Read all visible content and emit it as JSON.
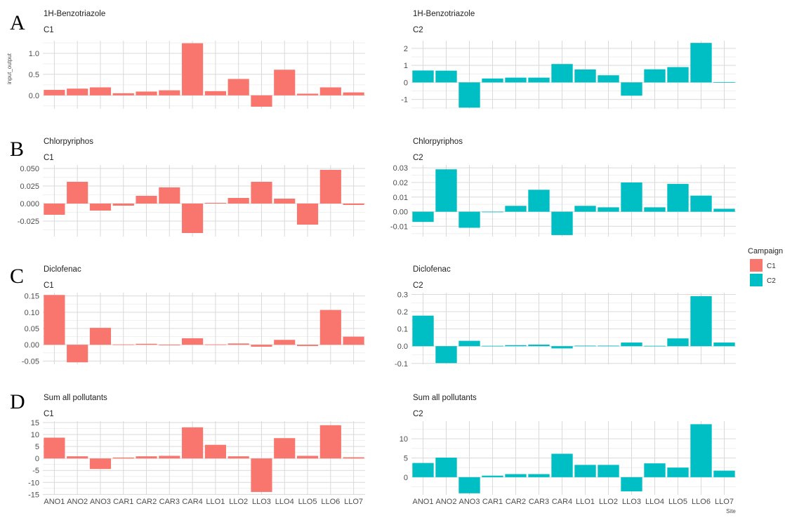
{
  "legend": {
    "title": "Campaign",
    "entries": [
      {
        "label": "C1",
        "color": "#F8766D"
      },
      {
        "label": "C2",
        "color": "#00BFC4"
      }
    ]
  },
  "axes": {
    "ylabel": "input_output",
    "xlabel": "Site"
  },
  "chart_data": [
    {
      "type": "bar",
      "letter": "A",
      "title": "1H-Benzotriazole",
      "subtitle": "C1",
      "color": "#F8766D",
      "categories": [
        "ANO1",
        "ANO2",
        "ANO3",
        "CAR1",
        "CAR2",
        "CAR3",
        "CAR4",
        "LLO1",
        "LLO2",
        "LLO3",
        "LLO4",
        "LLO5",
        "LLO6",
        "LLO7"
      ],
      "values": [
        0.13,
        0.16,
        0.19,
        0.05,
        0.09,
        0.12,
        1.24,
        0.1,
        0.39,
        -0.27,
        0.61,
        0.04,
        0.19,
        0.07
      ],
      "ylim": [
        -0.32,
        1.3
      ],
      "yticks": [
        0.0,
        0.5,
        1.0
      ],
      "ytick_labels": [
        "0.0",
        "0.5",
        "1.0"
      ]
    },
    {
      "type": "bar",
      "letter": "",
      "title": "1H-Benzotriazole",
      "subtitle": "C2",
      "color": "#00BFC4",
      "categories": [
        "ANO1",
        "ANO2",
        "ANO3",
        "CAR1",
        "CAR2",
        "CAR3",
        "CAR4",
        "LLO1",
        "LLO2",
        "LLO3",
        "LLO4",
        "LLO5",
        "LLO6",
        "LLO7"
      ],
      "values": [
        0.7,
        0.69,
        -1.48,
        0.23,
        0.28,
        0.28,
        1.08,
        0.76,
        0.42,
        -0.78,
        0.77,
        0.9,
        2.32,
        0.02
      ],
      "ylim": [
        -1.55,
        2.45
      ],
      "yticks": [
        -1,
        0,
        1,
        2
      ],
      "ytick_labels": [
        "-1",
        "0",
        "1",
        "2"
      ]
    },
    {
      "type": "bar",
      "letter": "B",
      "title": "Chlorpyriphos",
      "subtitle": "C1",
      "color": "#F8766D",
      "categories": [
        "ANO1",
        "ANO2",
        "ANO3",
        "CAR1",
        "CAR2",
        "CAR3",
        "CAR4",
        "LLO1",
        "LLO2",
        "LLO3",
        "LLO4",
        "LLO5",
        "LLO6",
        "LLO7"
      ],
      "values": [
        -0.016,
        0.031,
        -0.01,
        -0.003,
        0.011,
        0.023,
        -0.042,
        0.001,
        0.008,
        0.031,
        0.007,
        -0.03,
        0.048,
        -0.002
      ],
      "ylim": [
        -0.047,
        0.055
      ],
      "yticks": [
        -0.025,
        0.0,
        0.025,
        0.05
      ],
      "ytick_labels": [
        "-0.025",
        "0.000",
        "0.025",
        "0.050"
      ]
    },
    {
      "type": "bar",
      "letter": "",
      "title": "Chlorpyriphos",
      "subtitle": "C2",
      "color": "#00BFC4",
      "categories": [
        "ANO1",
        "ANO2",
        "ANO3",
        "CAR1",
        "CAR2",
        "CAR3",
        "CAR4",
        "LLO1",
        "LLO2",
        "LLO3",
        "LLO4",
        "LLO5",
        "LLO6",
        "LLO7"
      ],
      "values": [
        -0.007,
        0.029,
        -0.011,
        0.0,
        0.004,
        0.015,
        -0.016,
        0.004,
        0.003,
        0.02,
        0.003,
        0.019,
        0.011,
        0.002
      ],
      "ylim": [
        -0.017,
        0.032
      ],
      "yticks": [
        -0.01,
        0.0,
        0.01,
        0.02,
        0.03
      ],
      "ytick_labels": [
        "-0.01",
        "0.00",
        "0.01",
        "0.02",
        "0.03"
      ]
    },
    {
      "type": "bar",
      "letter": "C",
      "title": "Diclofenac",
      "subtitle": "C1",
      "color": "#F8766D",
      "categories": [
        "ANO1",
        "ANO2",
        "ANO3",
        "CAR1",
        "CAR2",
        "CAR3",
        "CAR4",
        "LLO1",
        "LLO2",
        "LLO3",
        "LLO4",
        "LLO5",
        "LLO6",
        "LLO7"
      ],
      "values": [
        0.153,
        -0.054,
        0.052,
        0.001,
        0.003,
        -0.002,
        0.02,
        0.001,
        0.004,
        -0.006,
        0.015,
        -0.004,
        0.107,
        0.025
      ],
      "ylim": [
        -0.06,
        0.16
      ],
      "yticks": [
        -0.05,
        0.0,
        0.05,
        0.1,
        0.15
      ],
      "ytick_labels": [
        "-0.05",
        "0.00",
        "0.05",
        "0.10",
        "0.15"
      ]
    },
    {
      "type": "bar",
      "letter": "",
      "title": "Diclofenac",
      "subtitle": "C2",
      "color": "#00BFC4",
      "categories": [
        "ANO1",
        "ANO2",
        "ANO3",
        "CAR1",
        "CAR2",
        "CAR3",
        "CAR4",
        "LLO1",
        "LLO2",
        "LLO3",
        "LLO4",
        "LLO5",
        "LLO6",
        "LLO7"
      ],
      "values": [
        0.177,
        -0.098,
        0.031,
        0.002,
        0.006,
        0.009,
        -0.013,
        0.003,
        0.003,
        0.021,
        0.002,
        0.045,
        0.29,
        0.021
      ],
      "ylim": [
        -0.105,
        0.31
      ],
      "yticks": [
        -0.1,
        0.0,
        0.1,
        0.2,
        0.3
      ],
      "ytick_labels": [
        "-0.1",
        "0.0",
        "0.1",
        "0.2",
        "0.3"
      ]
    },
    {
      "type": "bar",
      "letter": "D",
      "title": "Sum all pollutants",
      "subtitle": "C1",
      "color": "#F8766D",
      "categories": [
        "ANO1",
        "ANO2",
        "ANO3",
        "CAR1",
        "CAR2",
        "CAR3",
        "CAR4",
        "LLO1",
        "LLO2",
        "LLO3",
        "LLO4",
        "LLO5",
        "LLO6",
        "LLO7"
      ],
      "values": [
        8.7,
        0.9,
        -4.4,
        0.4,
        0.9,
        1.1,
        13.0,
        5.7,
        0.9,
        -14.0,
        8.5,
        1.1,
        13.9,
        0.5
      ],
      "ylim": [
        -15.2,
        15.6
      ],
      "yticks": [
        -15,
        -10,
        -5,
        0,
        5,
        10,
        15
      ],
      "ytick_labels": [
        "-15",
        "-10",
        "-5",
        "0",
        "5",
        "10",
        "15"
      ]
    },
    {
      "type": "bar",
      "letter": "",
      "title": "Sum all pollutants",
      "subtitle": "C2",
      "color": "#00BFC4",
      "categories": [
        "ANO1",
        "ANO2",
        "ANO3",
        "CAR1",
        "CAR2",
        "CAR3",
        "CAR4",
        "LLO1",
        "LLO2",
        "LLO3",
        "LLO4",
        "LLO5",
        "LLO6",
        "LLO7"
      ],
      "values": [
        3.7,
        5.1,
        -4.2,
        0.4,
        0.8,
        0.8,
        6.1,
        3.2,
        3.2,
        -3.7,
        3.6,
        2.5,
        13.8,
        1.7
      ],
      "ylim": [
        -4.6,
        14.6
      ],
      "yticks": [
        0,
        5,
        10
      ],
      "ytick_labels": [
        "0",
        "5",
        "10"
      ]
    }
  ]
}
